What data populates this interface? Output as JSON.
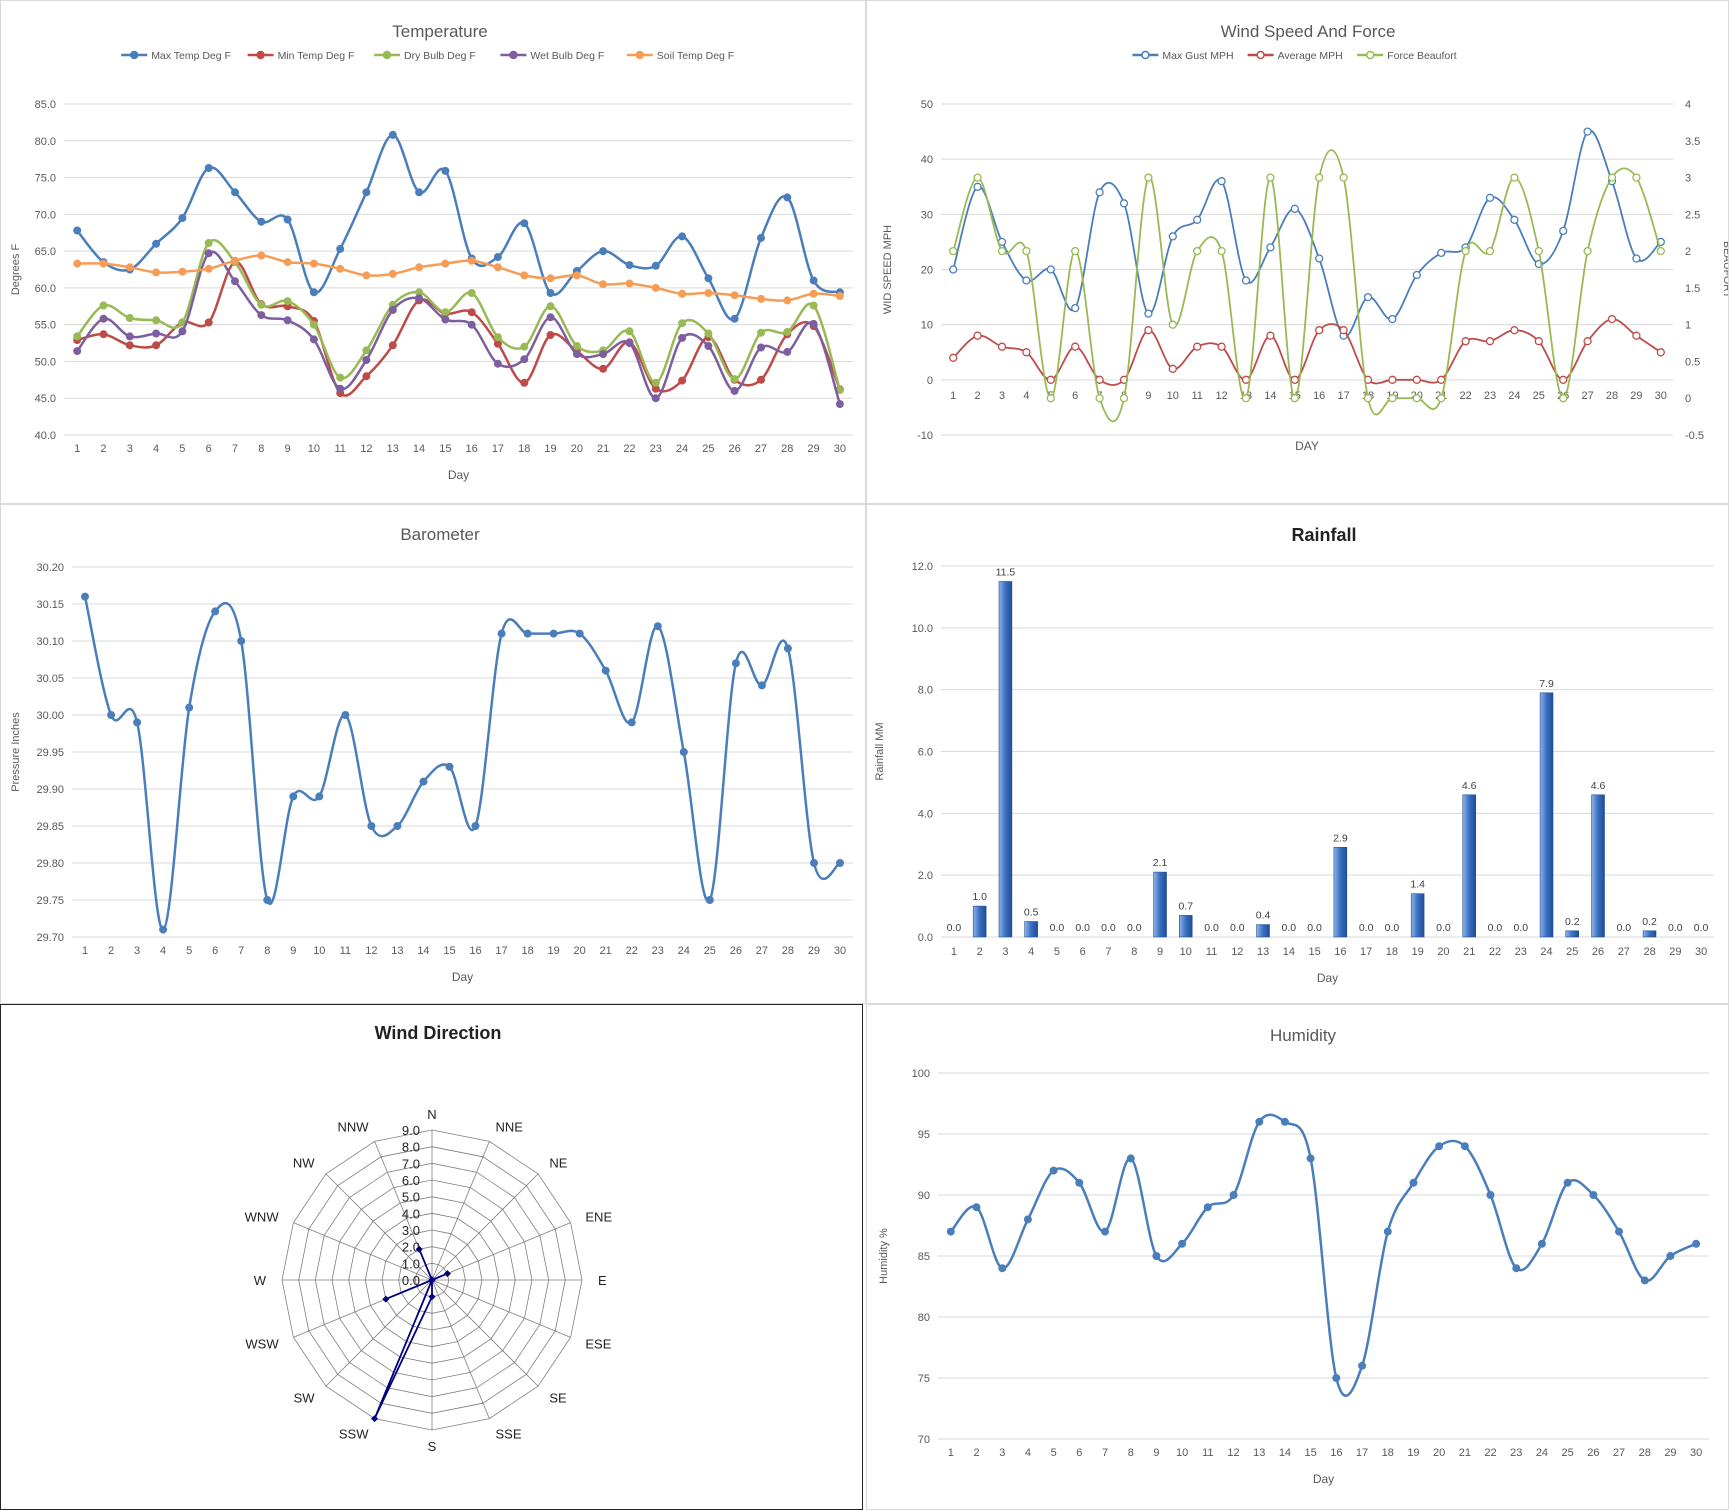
{
  "colors": {
    "max_temp": "#4a7ebb",
    "min_temp": "#be4b48",
    "dry_bulb": "#98b954",
    "wet_bulb": "#7d5fa0",
    "soil_temp": "#f59d56",
    "gust": "#4a7ebb",
    "avg_mph": "#be4b48",
    "beaufort": "#98b954",
    "baro": "#4a7ebb",
    "rain": "#3a6fc0",
    "wind_dir": "#00007f",
    "humidity": "#4a7ebb",
    "grid": "#d9d9d9",
    "axis_text": "#595959"
  },
  "chart_data": [
    {
      "id": "temperature",
      "type": "line",
      "title": "Temperature",
      "xlabel": "Day",
      "ylabel": "Degrees F",
      "ylim": [
        40,
        85
      ],
      "yticks": [
        "40.0",
        "45.0",
        "50.0",
        "55.0",
        "60.0",
        "65.0",
        "70.0",
        "75.0",
        "80.0",
        "85.0"
      ],
      "x": [
        1,
        2,
        3,
        4,
        5,
        6,
        7,
        8,
        9,
        10,
        11,
        12,
        13,
        14,
        15,
        16,
        17,
        18,
        19,
        20,
        21,
        22,
        23,
        24,
        25,
        26,
        27,
        28,
        29,
        30
      ],
      "legend": "top",
      "series": [
        {
          "name": "Max Temp Deg F",
          "color_key": "max_temp",
          "values": [
            67.8,
            63.5,
            62.5,
            66,
            69.5,
            76.3,
            73,
            69,
            69.3,
            59.4,
            65.3,
            73,
            80.8,
            73,
            75.9,
            64,
            64.2,
            68.8,
            59.3,
            62.3,
            65,
            63.1,
            63,
            67,
            61.3,
            55.8,
            66.8,
            72.3,
            61,
            59.4
          ]
        },
        {
          "name": "Min Temp Deg F",
          "color_key": "min_temp",
          "values": [
            52.9,
            53.7,
            52.2,
            52.2,
            55.3,
            55.3,
            63.5,
            57.8,
            57.5,
            55.5,
            45.7,
            48,
            52.2,
            58.3,
            56.5,
            56.7,
            52.4,
            47.1,
            53.6,
            51.4,
            49,
            52.6,
            46.3,
            47.4,
            53.3,
            47.5,
            47.5,
            53.7,
            54.8,
            46.2
          ]
        },
        {
          "name": "Dry Bulb Deg F",
          "color_key": "dry_bulb",
          "values": [
            53.4,
            57.6,
            55.9,
            55.6,
            55.3,
            66.1,
            63.5,
            57.7,
            58.2,
            55,
            47.8,
            51.5,
            57.7,
            59.4,
            56.7,
            59.3,
            53.3,
            52,
            57.5,
            52.1,
            51.5,
            54.1,
            47.1,
            55.2,
            53.8,
            47.6,
            53.9,
            54,
            57.6,
            46.1
          ]
        },
        {
          "name": "Wet Bulb Deg F",
          "color_key": "wet_bulb",
          "values": [
            51.4,
            55.8,
            53.4,
            53.8,
            54.1,
            64.7,
            60.9,
            56.3,
            55.6,
            53,
            46.3,
            50.2,
            57,
            58.6,
            55.7,
            55,
            49.7,
            50.3,
            56,
            51,
            51,
            52.5,
            45,
            53.2,
            52.1,
            46,
            51.9,
            51.3,
            55.1,
            44.2
          ]
        },
        {
          "name": "Soil Temp Deg F",
          "color_key": "soil_temp",
          "values": [
            63.3,
            63.3,
            62.8,
            62.1,
            62.2,
            62.6,
            63.7,
            64.4,
            63.5,
            63.3,
            62.6,
            61.7,
            61.9,
            62.8,
            63.3,
            63.7,
            62.8,
            61.7,
            61.3,
            61.7,
            60.5,
            60.6,
            60,
            59.2,
            59.3,
            59,
            58.5,
            58.3,
            59.2,
            58.9
          ]
        }
      ]
    },
    {
      "id": "wind_speed",
      "type": "line",
      "title": "Wind Speed And Force",
      "xlabel": "DAY",
      "ylabel": "WID SPEED MPH",
      "y2label": "BEAUFORT",
      "ylim": [
        -10,
        50
      ],
      "y2lim": [
        -0.5,
        4
      ],
      "yticks": [
        "-10",
        "0",
        "10",
        "20",
        "30",
        "40",
        "50"
      ],
      "y2ticks": [
        "-0.5",
        "0",
        "0.5",
        "1",
        "1.5",
        "2",
        "2.5",
        "3",
        "3.5",
        "4"
      ],
      "x": [
        1,
        2,
        3,
        4,
        5,
        6,
        7,
        8,
        9,
        10,
        11,
        12,
        13,
        14,
        15,
        16,
        17,
        18,
        19,
        20,
        21,
        22,
        23,
        24,
        25,
        26,
        27,
        28,
        29,
        30
      ],
      "legend": "top",
      "series": [
        {
          "name": "Max Gust MPH",
          "color_key": "gust",
          "axis": "left",
          "values": [
            20,
            35,
            25,
            18,
            20,
            13,
            34,
            32,
            12,
            26,
            29,
            36,
            18,
            24,
            31,
            22,
            8,
            15,
            11,
            19,
            23,
            24,
            33,
            29,
            21,
            27,
            45,
            36,
            22,
            25
          ]
        },
        {
          "name": "Average MPH",
          "color_key": "avg_mph",
          "axis": "left",
          "values": [
            4,
            8,
            6,
            5,
            0,
            6,
            0,
            0,
            9,
            2,
            6,
            6,
            0,
            8,
            0,
            9,
            9,
            0,
            0,
            0,
            0,
            7,
            7,
            9,
            7,
            0,
            7,
            11,
            8,
            5
          ]
        },
        {
          "name": "Force Beaufort",
          "color_key": "beaufort",
          "axis": "right",
          "values": [
            2,
            3,
            2,
            2,
            0,
            2,
            0,
            0,
            3,
            1,
            2,
            2,
            0,
            3,
            0,
            3,
            3,
            0,
            0,
            0,
            0,
            2,
            2,
            3,
            2,
            0,
            2,
            3,
            3,
            2
          ]
        }
      ]
    },
    {
      "id": "barometer",
      "type": "line",
      "title": "Barometer",
      "xlabel": "Day",
      "ylabel": "Pressure Inches",
      "ylim": [
        29.7,
        30.2
      ],
      "yticks": [
        "29.70",
        "29.75",
        "29.80",
        "29.85",
        "29.90",
        "29.95",
        "30.00",
        "30.05",
        "30.10",
        "30.15",
        "30.20"
      ],
      "x": [
        1,
        2,
        3,
        4,
        5,
        6,
        7,
        8,
        9,
        10,
        11,
        12,
        13,
        14,
        15,
        16,
        17,
        18,
        19,
        20,
        21,
        22,
        23,
        24,
        25,
        26,
        27,
        28,
        29,
        30
      ],
      "series": [
        {
          "color_key": "baro",
          "values": [
            30.16,
            30.0,
            29.99,
            29.71,
            30.01,
            30.14,
            30.1,
            29.75,
            29.89,
            29.89,
            30.0,
            29.85,
            29.85,
            29.91,
            29.93,
            29.85,
            30.11,
            30.11,
            30.11,
            30.11,
            30.06,
            29.99,
            30.12,
            29.95,
            29.75,
            30.07,
            30.04,
            30.09,
            29.8,
            29.8
          ]
        }
      ]
    },
    {
      "id": "rainfall",
      "type": "bar",
      "title": "Rainfall",
      "xlabel": "Day",
      "ylabel": "Rainfall MM",
      "ylim": [
        0,
        12
      ],
      "yticks": [
        "0.0",
        "2.0",
        "4.0",
        "6.0",
        "8.0",
        "10.0",
        "12.0"
      ],
      "categories": [
        "1",
        "2",
        "3",
        "4",
        "5",
        "6",
        "7",
        "8",
        "9",
        "10",
        "11",
        "12",
        "13",
        "14",
        "15",
        "16",
        "17",
        "18",
        "19",
        "20",
        "21",
        "22",
        "23",
        "24",
        "25",
        "26",
        "27",
        "28",
        "29",
        "30"
      ],
      "values": [
        0,
        1.0,
        11.5,
        0.5,
        0,
        0,
        0,
        0,
        2.1,
        0.7,
        0,
        0,
        0.4,
        0,
        0,
        2.9,
        0,
        0,
        1.4,
        0,
        4.6,
        0,
        0,
        7.9,
        0.2,
        4.6,
        0,
        0.2,
        0,
        0
      ],
      "value_labels": [
        "0.0",
        "1.0",
        "11.5",
        "0.5",
        "0.0",
        "0.0",
        "0.0",
        "0.0",
        "2.1",
        "0.7",
        "0.0",
        "0.0",
        "0.4",
        "0.0",
        "0.0",
        "2.9",
        "0.0",
        "0.0",
        "1.4",
        "0.0",
        "4.6",
        "0.0",
        "0.0",
        "7.9",
        "0.2",
        "4.6",
        "0.0",
        "0.2",
        "0.0",
        "0.0"
      ]
    },
    {
      "id": "wind_direction",
      "type": "radar",
      "title": "Wind Direction",
      "directions": [
        "N",
        "NNE",
        "NE",
        "ENE",
        "E",
        "ESE",
        "SE",
        "SSE",
        "S",
        "SSW",
        "SW",
        "WSW",
        "W",
        "WNW",
        "NW",
        "NNW"
      ],
      "rlim": [
        0,
        9
      ],
      "rticks": [
        "0.0",
        "1.0",
        "2.0",
        "3.0",
        "4.0",
        "5.0",
        "6.0",
        "7.0",
        "8.0",
        "9.0"
      ],
      "values": [
        0,
        0,
        0,
        1,
        0,
        0,
        0,
        0,
        1,
        9,
        0,
        3,
        0,
        0,
        0,
        2
      ]
    },
    {
      "id": "humidity",
      "type": "line",
      "title": "Humidity",
      "xlabel": "Day",
      "ylabel": "Humidity %",
      "ylim": [
        70,
        100
      ],
      "yticks": [
        "70",
        "75",
        "80",
        "85",
        "90",
        "95",
        "100"
      ],
      "x": [
        1,
        2,
        3,
        4,
        5,
        6,
        7,
        8,
        9,
        10,
        11,
        12,
        13,
        14,
        15,
        16,
        17,
        18,
        19,
        20,
        21,
        22,
        23,
        24,
        25,
        26,
        27,
        28,
        29,
        30
      ],
      "series": [
        {
          "color_key": "humidity",
          "values": [
            87,
            89,
            84,
            88,
            92,
            91,
            87,
            93,
            85,
            86,
            89,
            90,
            96,
            96,
            93,
            75,
            76,
            87,
            91,
            94,
            94,
            90,
            84,
            86,
            91,
            90,
            87,
            83,
            85,
            86
          ]
        }
      ]
    }
  ]
}
